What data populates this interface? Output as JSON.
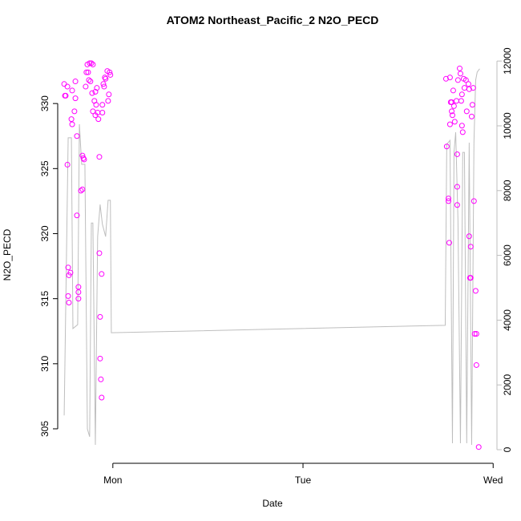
{
  "chart_data": {
    "type": "scatter",
    "title": "ATOM2 Northeast_Pacific_2 N2O_PECD",
    "xlabel": "Date",
    "ylabel": "N2O_PECD",
    "xlim": [
      -0.29,
      2.02
    ],
    "xticks": [
      {
        "value": 0,
        "label": "Mon"
      },
      {
        "value": 1,
        "label": "Tue"
      },
      {
        "value": 2,
        "label": "Wed"
      }
    ],
    "ylim": [
      302.35,
      334.26
    ],
    "yticks": [
      305,
      310,
      315,
      320,
      325,
      330
    ],
    "y2lim": [
      -420,
      12400
    ],
    "y2ticks": [
      0,
      2000,
      4000,
      6000,
      8000,
      10000,
      12000
    ],
    "y2color": "#bebebe",
    "series": [
      {
        "type": "scatter",
        "color": "#ff00ff",
        "x": [
          -0.256,
          -0.252,
          -0.248,
          -0.239,
          -0.239,
          -0.235,
          -0.231,
          -0.235,
          -0.231,
          -0.223,
          -0.218,
          -0.214,
          -0.214,
          -0.202,
          -0.197,
          -0.197,
          -0.189,
          -0.189,
          -0.181,
          -0.181,
          -0.181,
          -0.168,
          -0.16,
          -0.16,
          -0.155,
          -0.151,
          -0.143,
          -0.139,
          -0.134,
          -0.13,
          -0.126,
          -0.122,
          -0.118,
          -0.113,
          -0.109,
          -0.105,
          -0.105,
          -0.097,
          -0.092,
          -0.092,
          -0.088,
          -0.084,
          -0.08,
          -0.076,
          -0.071,
          -0.071,
          -0.067,
          -0.067,
          -0.063,
          -0.059,
          -0.059,
          -0.055,
          -0.055,
          -0.05,
          -0.046,
          -0.042,
          -0.038,
          -0.029,
          -0.025,
          -0.021,
          -0.017,
          -0.013,
          1.752,
          1.756,
          1.765,
          1.765,
          1.769,
          1.773,
          1.773,
          1.777,
          1.782,
          1.782,
          1.786,
          1.79,
          1.794,
          1.798,
          1.807,
          1.811,
          1.811,
          1.811,
          1.815,
          1.824,
          1.828,
          1.832,
          1.836,
          1.836,
          1.84,
          1.845,
          1.849,
          1.857,
          1.861,
          1.87,
          1.874,
          1.874,
          1.878,
          1.882,
          1.882,
          1.887,
          1.891,
          1.895,
          1.899,
          1.903,
          1.908,
          1.912,
          1.912,
          1.924
        ],
        "values": [
          331.5,
          330.6,
          330.6,
          331.3,
          325.3,
          317.4,
          316.8,
          315.2,
          314.7,
          317.0,
          328.8,
          328.4,
          331.0,
          329.4,
          331.7,
          330.4,
          327.5,
          321.4,
          315.9,
          315.5,
          315.0,
          323.3,
          323.4,
          326.0,
          325.8,
          325.7,
          331.3,
          332.4,
          333.0,
          332.4,
          331.8,
          333.1,
          331.7,
          333.1,
          330.8,
          329.4,
          333.0,
          330.2,
          329.1,
          330.9,
          329.9,
          331.2,
          329.3,
          328.8,
          325.9,
          318.5,
          313.6,
          310.4,
          308.8,
          307.4,
          316.9,
          329.9,
          329.3,
          331.5,
          331.3,
          332.0,
          331.9,
          332.5,
          330.2,
          330.7,
          332.4,
          332.2,
          331.9,
          326.7,
          322.5,
          322.7,
          319.3,
          328.4,
          332.0,
          330.1,
          330.1,
          329.4,
          329.1,
          331.0,
          329.8,
          328.6,
          330.2,
          326.1,
          323.6,
          322.2,
          331.8,
          332.7,
          332.3,
          330.2,
          330.7,
          328.3,
          327.8,
          331.9,
          331.2,
          331.8,
          329.4,
          331.5,
          319.8,
          331.1,
          316.6,
          319.0,
          316.6,
          329.0,
          329.9,
          331.2,
          322.5,
          312.3,
          315.6,
          312.3,
          309.9,
          303.6
        ]
      },
      {
        "type": "line",
        "axis": "y2",
        "color": "#bebebe",
        "x": [
          -0.256,
          -0.235,
          -0.218,
          -0.21,
          -0.185,
          -0.176,
          -0.164,
          -0.147,
          -0.134,
          -0.122,
          -0.113,
          -0.105,
          -0.092,
          -0.08,
          -0.067,
          -0.055,
          -0.038,
          -0.025,
          -0.013,
          -0.008,
          1.748,
          1.756,
          1.773,
          1.786,
          1.794,
          1.803,
          1.815,
          1.828,
          1.84,
          1.849,
          1.861,
          1.874,
          1.887,
          1.899,
          1.908,
          1.916,
          1.929
        ],
        "values": [
          1060,
          9630,
          9630,
          3740,
          3860,
          10050,
          8810,
          8810,
          640,
          400,
          7000,
          7000,
          150,
          6580,
          7570,
          6960,
          6580,
          7700,
          7700,
          3610,
          3840,
          9430,
          9550,
          200,
          9180,
          9800,
          7080,
          200,
          9180,
          9180,
          200,
          9480,
          150,
          9480,
          11410,
          11660,
          11760
        ]
      }
    ]
  }
}
